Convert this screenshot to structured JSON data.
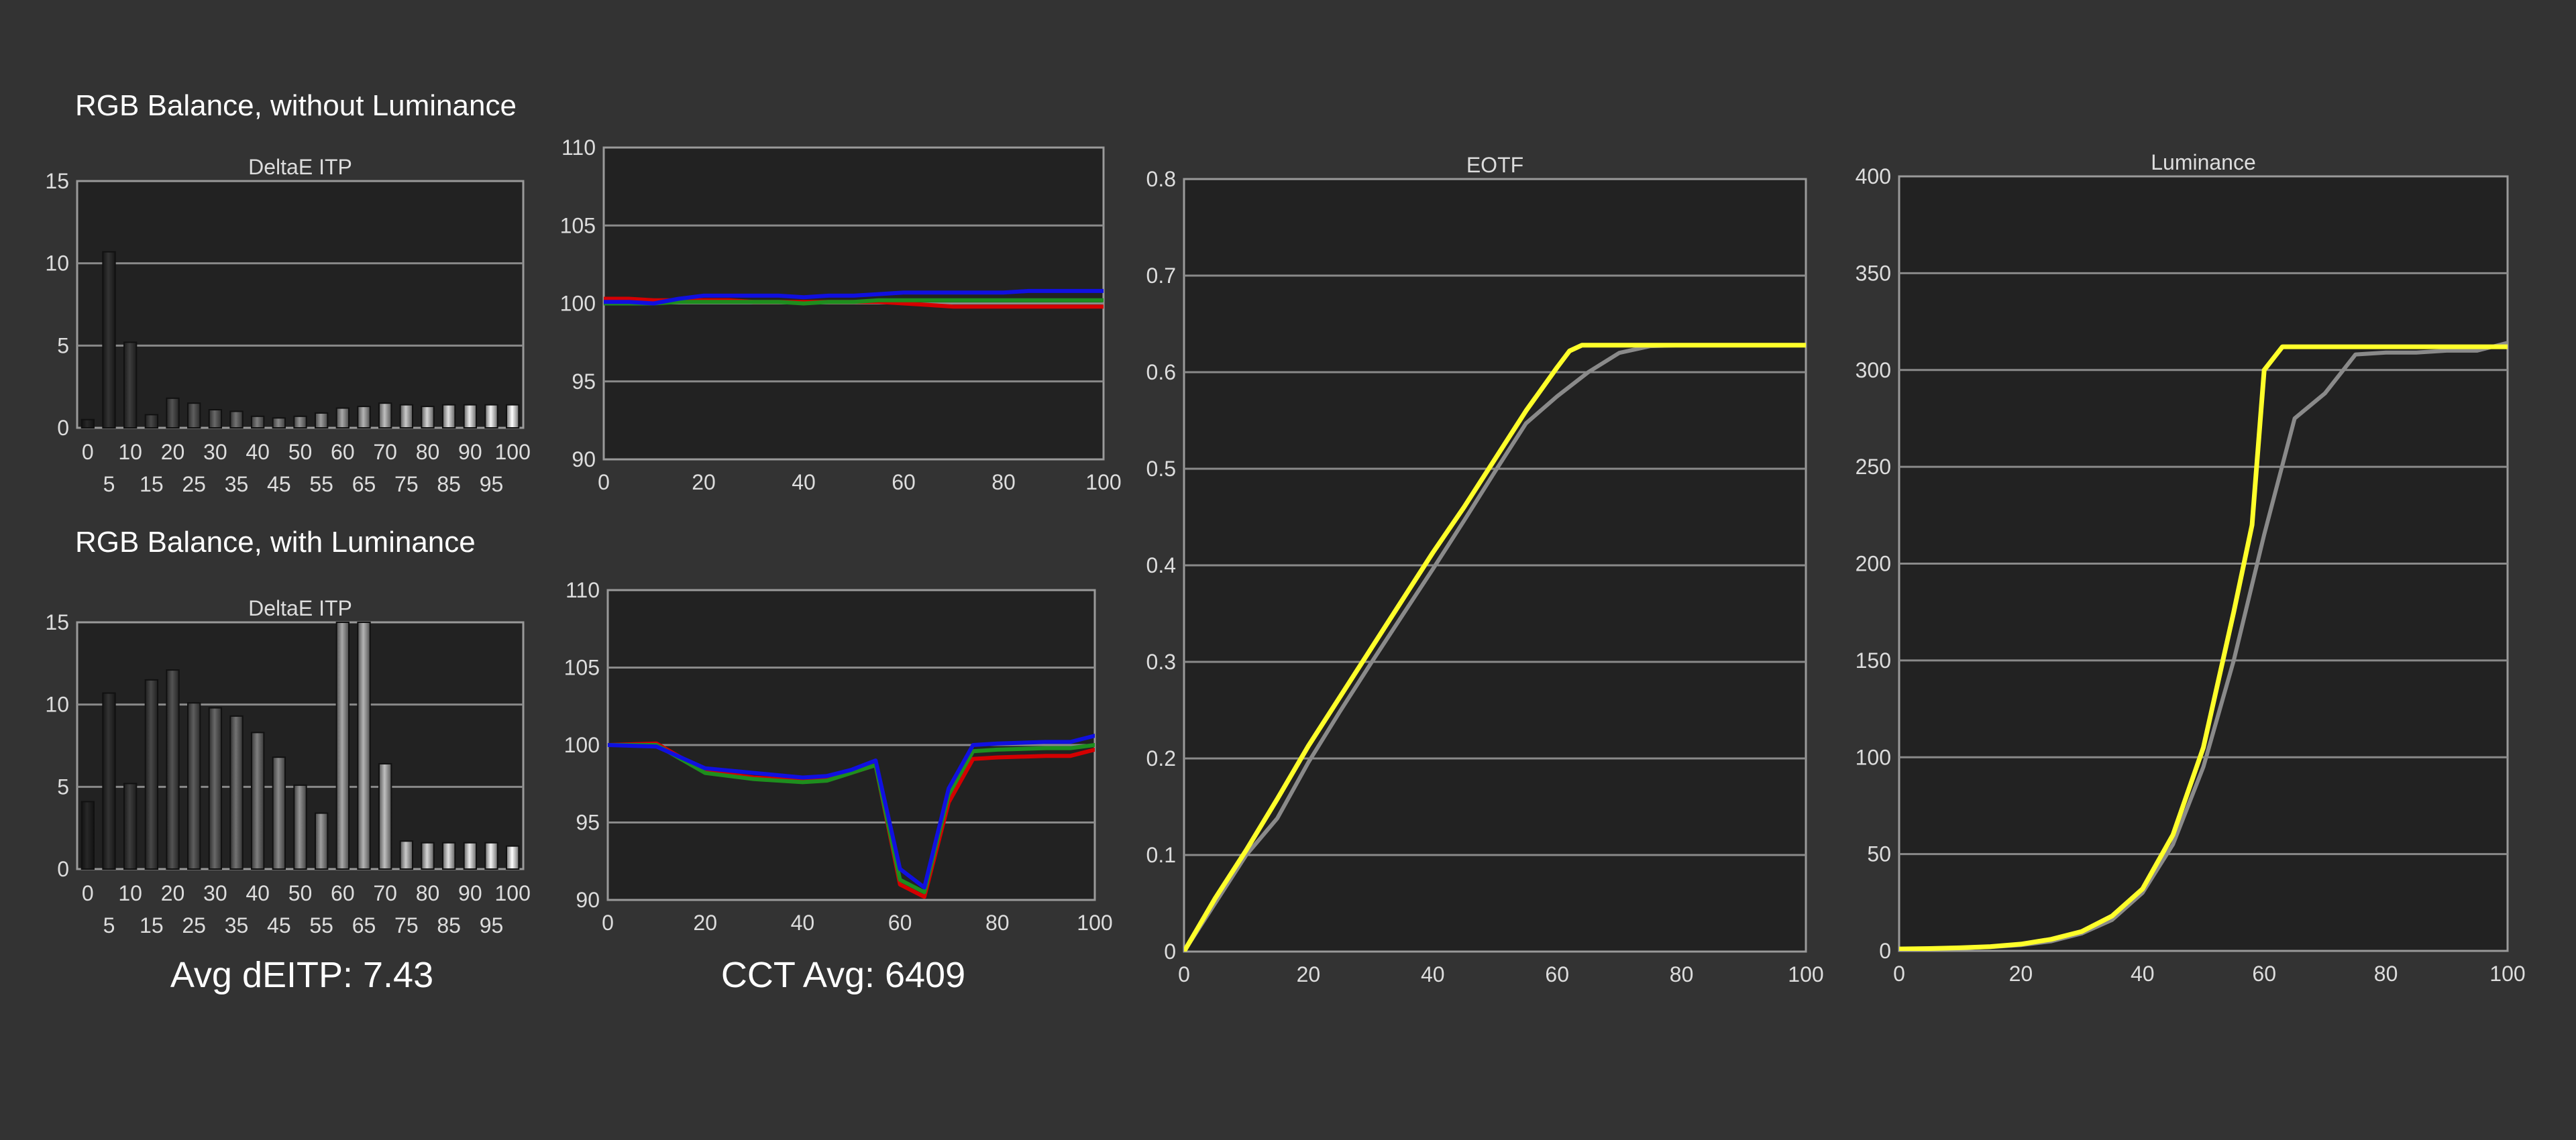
{
  "sections": {
    "without": "RGB Balance, without Luminance",
    "with": "RGB Balance, with Luminance"
  },
  "summary": {
    "avg_deitp": "Avg dEITP: 7.43",
    "cct_avg": "CCT Avg: 6409"
  },
  "colors": {
    "background": "#333333",
    "plot_bg": "#222222",
    "red": "#d40000",
    "green": "#1e8e1e",
    "blue": "#1010e0",
    "measured": "#ffff2a",
    "target": "#8a8a8a"
  },
  "chart_data": [
    {
      "id": "deitp1",
      "type": "bar",
      "title": "DeltaE ITP",
      "categories": [
        "0",
        "5",
        "10",
        "15",
        "20",
        "25",
        "30",
        "35",
        "40",
        "45",
        "50",
        "55",
        "60",
        "65",
        "70",
        "75",
        "80",
        "85",
        "90",
        "95",
        "100"
      ],
      "values": [
        0.5,
        10.7,
        5.2,
        0.8,
        1.8,
        1.5,
        1.1,
        1.0,
        0.7,
        0.6,
        0.7,
        0.9,
        1.2,
        1.3,
        1.5,
        1.4,
        1.3,
        1.4,
        1.4,
        1.4,
        1.4
      ],
      "ylim": [
        0,
        15
      ],
      "yticks": [
        0,
        5,
        10,
        15
      ],
      "grid": true
    },
    {
      "id": "rgb1",
      "type": "line",
      "title": "",
      "xlim": [
        0,
        100
      ],
      "ylim": [
        90,
        110
      ],
      "xticks": [
        0,
        20,
        40,
        60,
        80,
        100
      ],
      "yticks": [
        90,
        95,
        100,
        105,
        110
      ],
      "grid": true,
      "series": [
        {
          "color": "red",
          "x": [
            0,
            5,
            10,
            15,
            20,
            25,
            30,
            35,
            40,
            45,
            50,
            55,
            60,
            65,
            70,
            75,
            80,
            85,
            90,
            95,
            100
          ],
          "y": [
            100.3,
            100.3,
            100.2,
            100.2,
            100.2,
            100.2,
            100.1,
            100.1,
            100.1,
            100.1,
            100.1,
            100.1,
            100.0,
            99.9,
            99.8,
            99.8,
            99.8,
            99.8,
            99.8,
            99.8,
            99.8
          ]
        },
        {
          "color": "green",
          "x": [
            0,
            5,
            10,
            15,
            20,
            25,
            30,
            35,
            40,
            45,
            50,
            55,
            60,
            65,
            70,
            75,
            80,
            85,
            90,
            95,
            100
          ],
          "y": [
            100.0,
            100.0,
            100.0,
            100.1,
            100.1,
            100.1,
            100.1,
            100.1,
            100.0,
            100.1,
            100.1,
            100.2,
            100.2,
            100.2,
            100.2,
            100.2,
            100.2,
            100.2,
            100.2,
            100.2,
            100.2
          ]
        },
        {
          "color": "blue",
          "x": [
            0,
            5,
            10,
            15,
            20,
            25,
            30,
            35,
            40,
            45,
            50,
            55,
            60,
            65,
            70,
            75,
            80,
            85,
            90,
            95,
            100
          ],
          "y": [
            100.1,
            100.1,
            100.0,
            100.3,
            100.5,
            100.5,
            100.5,
            100.5,
            100.4,
            100.5,
            100.5,
            100.6,
            100.7,
            100.7,
            100.7,
            100.7,
            100.7,
            100.8,
            100.8,
            100.8,
            100.8
          ]
        }
      ]
    },
    {
      "id": "deitp2",
      "type": "bar",
      "title": "DeltaE ITP",
      "categories": [
        "0",
        "5",
        "10",
        "15",
        "20",
        "25",
        "30",
        "35",
        "40",
        "45",
        "50",
        "55",
        "60",
        "65",
        "70",
        "75",
        "80",
        "85",
        "90",
        "95",
        "100"
      ],
      "values": [
        4.1,
        10.7,
        5.2,
        11.5,
        12.1,
        10.1,
        9.8,
        9.3,
        8.3,
        6.8,
        5.1,
        3.4,
        15,
        15,
        6.4,
        1.7,
        1.6,
        1.6,
        1.6,
        1.6,
        1.4
      ],
      "ylim": [
        0,
        15
      ],
      "yticks": [
        0,
        5,
        10,
        15
      ],
      "grid": true
    },
    {
      "id": "rgb2",
      "type": "line",
      "title": "",
      "xlim": [
        0,
        100
      ],
      "ylim": [
        90,
        110
      ],
      "xticks": [
        0,
        20,
        40,
        60,
        80,
        100
      ],
      "yticks": [
        90,
        95,
        100,
        105,
        110
      ],
      "grid": true,
      "series": [
        {
          "color": "red",
          "x": [
            0,
            10,
            20,
            30,
            40,
            45,
            50,
            55,
            60,
            65,
            70,
            75,
            80,
            90,
            95,
            100
          ],
          "y": [
            100,
            100.1,
            98.3,
            97.9,
            97.7,
            97.8,
            98.2,
            98.7,
            91.0,
            90.2,
            96.3,
            99.1,
            99.2,
            99.3,
            99.3,
            99.7
          ]
        },
        {
          "color": "green",
          "x": [
            0,
            10,
            20,
            30,
            40,
            45,
            50,
            55,
            60,
            65,
            70,
            75,
            80,
            90,
            95,
            100
          ],
          "y": [
            100,
            100,
            98.2,
            97.8,
            97.6,
            97.7,
            98.2,
            98.7,
            91.3,
            90.5,
            96.8,
            99.6,
            99.7,
            99.8,
            99.8,
            100.0
          ]
        },
        {
          "color": "blue",
          "x": [
            0,
            10,
            20,
            30,
            40,
            45,
            50,
            55,
            60,
            65,
            70,
            75,
            80,
            90,
            95,
            100
          ],
          "y": [
            100,
            99.9,
            98.5,
            98.2,
            97.9,
            98.0,
            98.4,
            99.0,
            92.0,
            90.8,
            97.2,
            100.0,
            100.1,
            100.2,
            100.2,
            100.6
          ]
        }
      ]
    },
    {
      "id": "eotf",
      "type": "line",
      "title": "EOTF",
      "xlim": [
        0,
        100
      ],
      "ylim": [
        0,
        0.8
      ],
      "xticks": [
        0,
        20,
        40,
        60,
        80,
        100
      ],
      "yticks": [
        0,
        0.1,
        0.2,
        0.3,
        0.4,
        0.5,
        0.6,
        0.7,
        0.8
      ],
      "grid": true,
      "series": [
        {
          "color": "target",
          "x": [
            0,
            5,
            10,
            15,
            20,
            25,
            30,
            35,
            40,
            45,
            50,
            55,
            60,
            65,
            70,
            75,
            80,
            85,
            90,
            95,
            100
          ],
          "y": [
            0,
            0.05,
            0.1,
            0.138,
            0.196,
            0.248,
            0.298,
            0.347,
            0.396,
            0.446,
            0.497,
            0.547,
            0.575,
            0.6,
            0.62,
            0.627,
            0.628,
            0.628,
            0.628,
            0.628,
            0.628
          ]
        },
        {
          "color": "measured",
          "x": [
            0,
            5,
            10,
            15,
            20,
            25,
            30,
            35,
            40,
            45,
            50,
            55,
            60,
            62,
            64,
            70,
            75,
            80,
            85,
            90,
            95,
            100
          ],
          "y": [
            0,
            0.055,
            0.105,
            0.158,
            0.213,
            0.263,
            0.313,
            0.363,
            0.413,
            0.46,
            0.51,
            0.56,
            0.605,
            0.622,
            0.628,
            0.628,
            0.628,
            0.628,
            0.628,
            0.628,
            0.628,
            0.628
          ]
        }
      ]
    },
    {
      "id": "luminance",
      "type": "line",
      "title": "Luminance",
      "xlim": [
        0,
        100
      ],
      "ylim": [
        0,
        400
      ],
      "xticks": [
        0,
        20,
        40,
        60,
        80,
        100
      ],
      "yticks": [
        0,
        50,
        100,
        150,
        200,
        250,
        300,
        350,
        400
      ],
      "grid": true,
      "series": [
        {
          "color": "target",
          "x": [
            0,
            5,
            10,
            15,
            20,
            25,
            30,
            35,
            40,
            45,
            50,
            55,
            60,
            65,
            70,
            75,
            80,
            85,
            90,
            95,
            100
          ],
          "y": [
            1,
            1.2,
            1.5,
            2,
            3,
            5,
            9,
            16,
            30,
            55,
            95,
            150,
            215,
            275,
            288,
            308,
            309,
            309,
            310,
            310,
            314
          ]
        },
        {
          "color": "measured",
          "x": [
            0,
            5,
            10,
            15,
            20,
            25,
            30,
            35,
            40,
            45,
            50,
            55,
            58,
            60,
            62,
            63,
            65,
            70,
            80,
            90,
            100
          ],
          "y": [
            1,
            1.2,
            1.6,
            2.2,
            3.5,
            6,
            10,
            18,
            32,
            60,
            105,
            175,
            220,
            300,
            308,
            312,
            312,
            312,
            312,
            312,
            312
          ]
        }
      ]
    }
  ]
}
